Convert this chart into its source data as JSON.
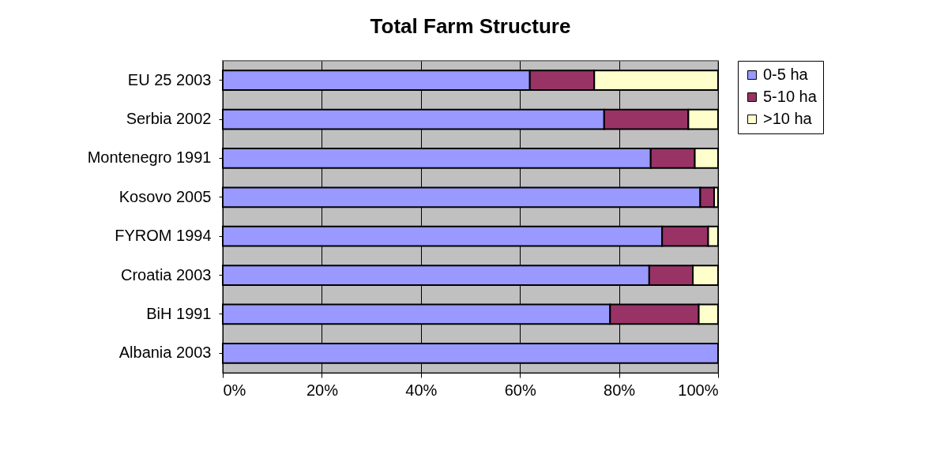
{
  "chart_data": {
    "type": "bar",
    "orientation": "horizontal",
    "stacked": true,
    "title": "Total Farm Structure",
    "categories": [
      "EU 25 2003",
      "Serbia 2002",
      "Montenegro 1991",
      "Kosovo 2005",
      "FYROM 1994",
      "Croatia 2003",
      "BiH 1991",
      "Albania 2003"
    ],
    "series": [
      {
        "name": "0-5 ha",
        "color": "#9999ff",
        "values": [
          62,
          77,
          86.4,
          96.4,
          88.7,
          86.1,
          78.2,
          100
        ]
      },
      {
        "name": "5-10 ha",
        "color": "#993366",
        "values": [
          13,
          17,
          8.9,
          2.8,
          9.3,
          8.8,
          17.9,
          0
        ]
      },
      {
        "name": ">10 ha",
        "color": "#ffffcc",
        "values": [
          25,
          6,
          4.7,
          0.8,
          2.0,
          5.1,
          3.9,
          0
        ]
      }
    ],
    "xlim": [
      0,
      100
    ],
    "xticks": [
      {
        "value": 0,
        "label": "0%"
      },
      {
        "value": 20,
        "label": "20%"
      },
      {
        "value": 40,
        "label": "40%"
      },
      {
        "value": 60,
        "label": "60%"
      },
      {
        "value": 80,
        "label": "80%"
      },
      {
        "value": 100,
        "label": "100%"
      }
    ],
    "grid": "x",
    "legend": "right"
  }
}
